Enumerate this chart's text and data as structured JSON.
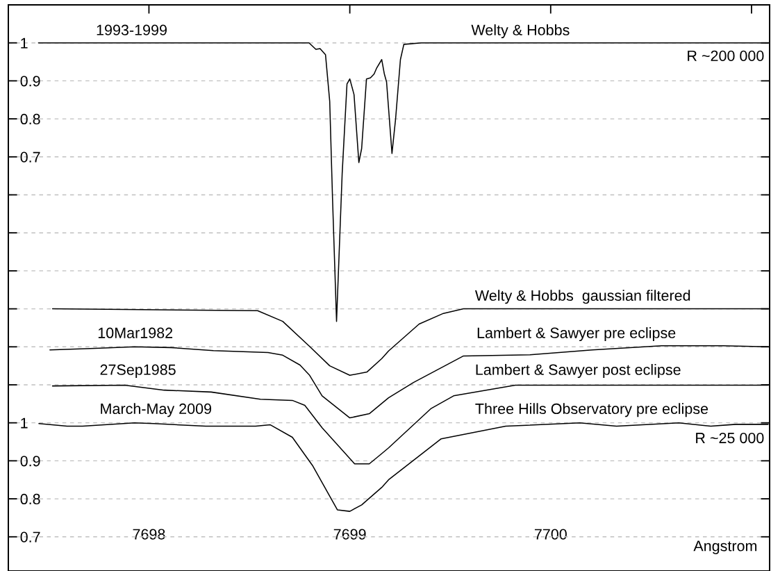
{
  "chart_data": {
    "type": "line",
    "xlabel": "Angstrom",
    "xlim": [
      7697.3,
      7701.09
    ],
    "xticks": [
      7698,
      7699,
      7700,
      {
        "value": 7701,
        "label": null
      }
    ],
    "ylim": [
      0.61,
      2.1
    ],
    "yticks": [
      0.7,
      0.8,
      0.9,
      1,
      {
        "value": 1.1,
        "label": null
      },
      {
        "value": 1.2,
        "label": null
      },
      {
        "value": 1.3,
        "label": null
      },
      {
        "value": 1.4,
        "label": null
      },
      {
        "value": 1.5,
        "label": null
      },
      {
        "value": 1.6,
        "label": null
      }
    ],
    "y2lim": [
      -0.39,
      1.1
    ],
    "y2ticks": [
      0.7,
      0.8,
      0.9,
      1
    ],
    "grid": "y",
    "line_style": "solid",
    "marker": "none",
    "series": [
      {
        "color": "#000000",
        "axis": "y2",
        "x": [
          7697.45,
          7698.797,
          7698.831,
          7698.852,
          7698.879,
          7698.9,
          7698.914,
          7698.934,
          7698.962,
          7698.986,
          7699.0,
          7699.021,
          7699.045,
          7699.059,
          7699.083,
          7699.103,
          7699.121,
          7699.134,
          7699.159,
          7699.172,
          7699.183,
          7699.21,
          7699.228,
          7699.252,
          7699.269,
          7699.355,
          7701.083
        ],
        "values": [
          1.0,
          1.0,
          0.983,
          0.985,
          0.969,
          0.846,
          0.59,
          0.267,
          0.656,
          0.892,
          0.905,
          0.864,
          0.685,
          0.722,
          0.905,
          0.908,
          0.918,
          0.934,
          0.956,
          0.918,
          0.897,
          0.709,
          0.8,
          0.956,
          0.996,
          1.0,
          1.0
        ]
      },
      {
        "color": "#000000",
        "x": [
          7697.52,
          7698.541,
          7698.666,
          7698.8,
          7698.9,
          7699.0,
          7699.086,
          7699.159,
          7699.193,
          7699.345,
          7699.466,
          7699.566,
          7701.083
        ],
        "values": [
          1.3,
          1.295,
          1.267,
          1.201,
          1.15,
          1.125,
          1.134,
          1.169,
          1.189,
          1.26,
          1.288,
          1.3,
          1.3
        ]
      },
      {
        "color": "#000000",
        "x": [
          7697.507,
          7697.731,
          7697.928,
          7698.11,
          7698.321,
          7698.593,
          7698.666,
          7698.752,
          7698.8,
          7698.862,
          7699.0,
          7699.097,
          7699.193,
          7699.317,
          7699.566,
          7699.897,
          7700.207,
          7700.552,
          7700.859,
          7701.083
        ],
        "values": [
          1.192,
          1.196,
          1.2,
          1.198,
          1.19,
          1.185,
          1.178,
          1.152,
          1.125,
          1.071,
          1.013,
          1.024,
          1.066,
          1.106,
          1.176,
          1.179,
          1.192,
          1.203,
          1.203,
          1.2
        ]
      },
      {
        "color": "#000000",
        "x": [
          7697.52,
          7697.879,
          7698.076,
          7698.31,
          7698.555,
          7698.714,
          7698.776,
          7698.862,
          7699.024,
          7699.097,
          7699.159,
          7699.193,
          7699.403,
          7699.517,
          7699.824,
          7701.083
        ],
        "values": [
          1.097,
          1.099,
          1.086,
          1.081,
          1.062,
          1.059,
          1.046,
          0.987,
          0.892,
          0.892,
          0.919,
          0.934,
          1.037,
          1.071,
          1.099,
          1.099
        ]
      },
      {
        "color": "#000000",
        "x": [
          7697.452,
          7697.593,
          7697.669,
          7697.928,
          7698.024,
          7698.283,
          7698.531,
          7698.603,
          7698.714,
          7698.814,
          7698.938,
          7699.0,
          7699.059,
          7699.159,
          7699.193,
          7699.455,
          7699.776,
          7700.145,
          7700.328,
          7700.638,
          7700.797,
          7700.921,
          7701.083
        ],
        "values": [
          0.998,
          0.991,
          0.991,
          1.0,
          0.998,
          0.991,
          0.991,
          0.995,
          0.962,
          0.888,
          0.771,
          0.767,
          0.784,
          0.83,
          0.85,
          0.958,
          0.991,
          1.0,
          0.991,
          1.0,
          0.991,
          0.996,
          0.996
        ]
      }
    ],
    "annotations": [
      "1993-1999",
      "Welty & Hobbs",
      "R ~200 000",
      "Welty & Hobbs  gaussian filtered",
      "10Mar1982",
      "Lambert & Sawyer pre eclipse",
      "27Sep1985",
      "Lambert & Sawyer post eclipse",
      "March-May 2009",
      "Three Hills Observatory pre eclipse",
      "R ~25 000"
    ]
  }
}
